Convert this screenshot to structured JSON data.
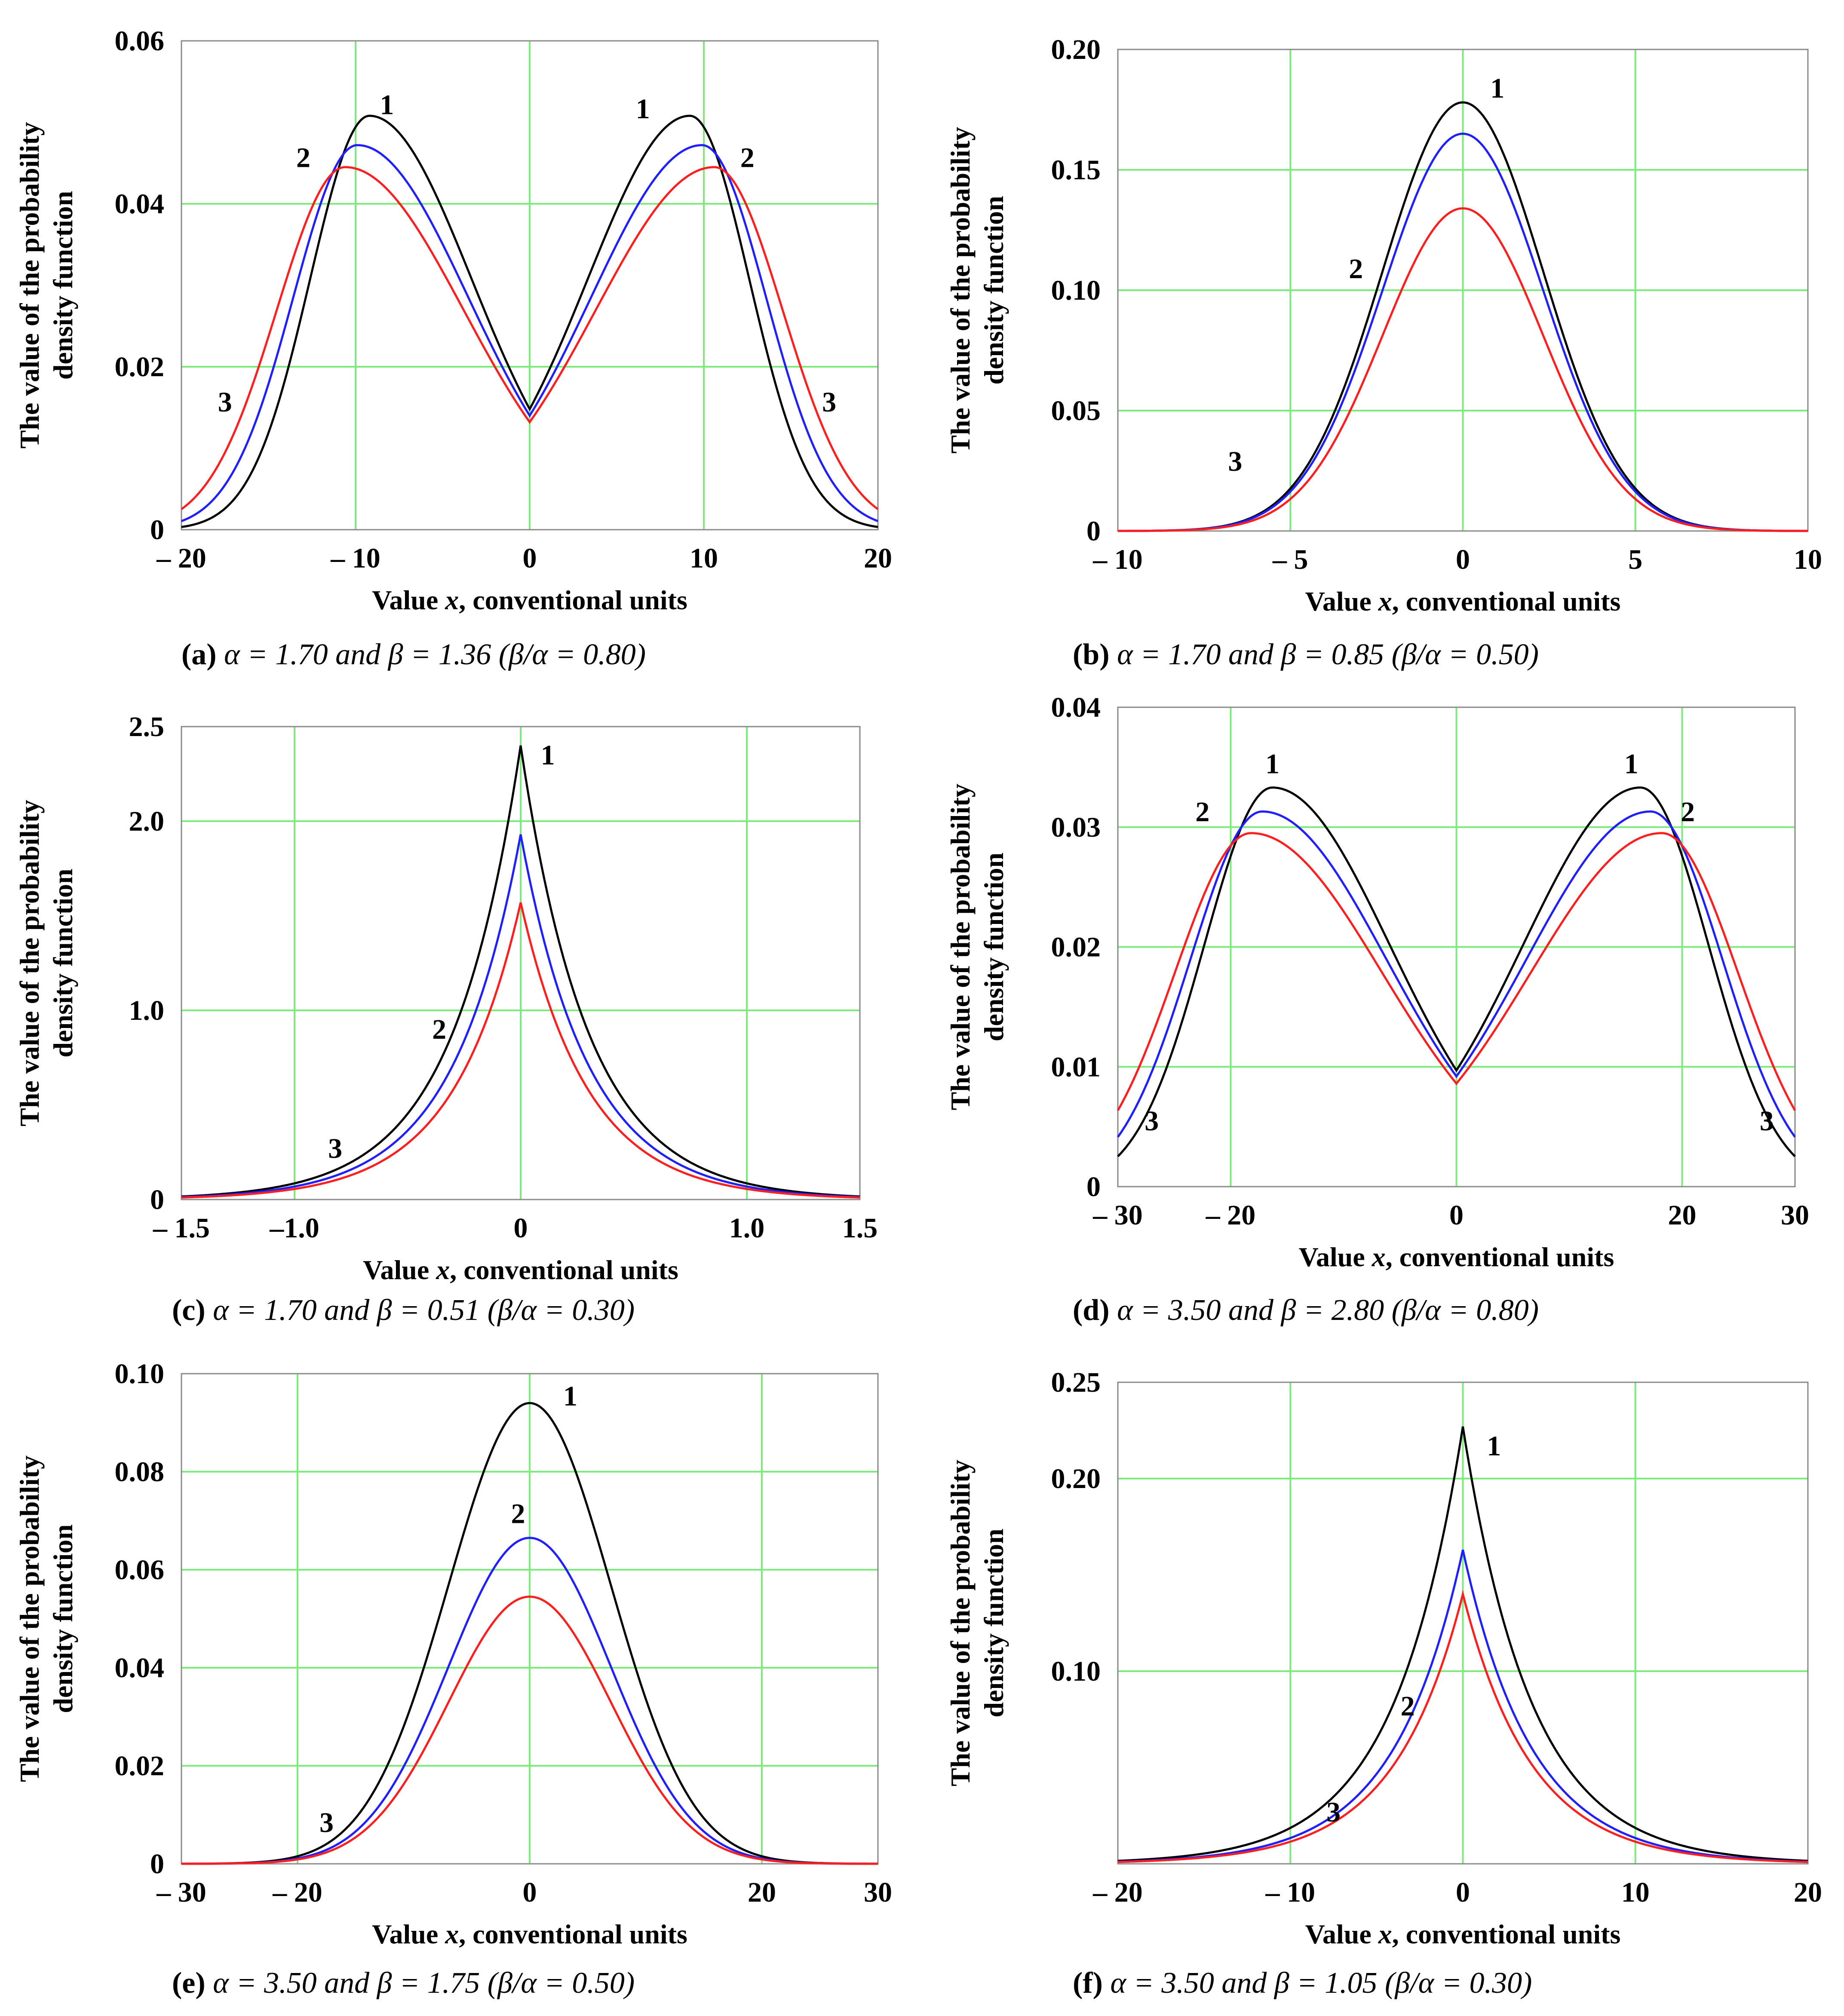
{
  "colors": {
    "grid": "#7CEB7C",
    "curve_1": "#000000",
    "curve_2": "#1f1fff",
    "curve_3": "#ff1f1f"
  },
  "chart_data": [
    {
      "id": "a",
      "type": "line",
      "caption_letter": "(a)",
      "caption_text": "α = 1.70 and β = 1.36 (β/α = 0.80)",
      "xlabel": "Value x, conventional units",
      "ylabel_line1": "The value of the probability",
      "ylabel_line2": "density function",
      "xlim": [
        -20,
        20
      ],
      "ylim": [
        0,
        0.06
      ],
      "xticks": [
        -20,
        -10,
        0,
        10,
        20
      ],
      "xtick_labels": [
        "– 20",
        "– 10",
        "0",
        "10",
        "20"
      ],
      "yticks": [
        0,
        0.02,
        0.04,
        0.06
      ],
      "ytick_labels": [
        "0",
        "0.02",
        "0.04",
        "0.06"
      ],
      "series": [
        {
          "name": "1",
          "color": "#000000",
          "shape": "bimodal",
          "peak_x": 9.2,
          "peak_y": 0.0508,
          "center_y": 0.0148
        },
        {
          "name": "2",
          "color": "#1f1fff",
          "shape": "bimodal",
          "peak_x": 9.9,
          "peak_y": 0.0472,
          "center_y": 0.014
        },
        {
          "name": "3",
          "color": "#ff1f1f",
          "shape": "bimodal",
          "peak_x": 10.6,
          "peak_y": 0.0445,
          "center_y": 0.0132
        }
      ],
      "annotations": [
        {
          "text": "1",
          "x": -8.2,
          "y": 0.051
        },
        {
          "text": "1",
          "x": 6.5,
          "y": 0.0505
        },
        {
          "text": "2",
          "x": -13,
          "y": 0.0445
        },
        {
          "text": "2",
          "x": 12.5,
          "y": 0.0445
        },
        {
          "text": "3",
          "x": -17.5,
          "y": 0.0145
        },
        {
          "text": "3",
          "x": 17.2,
          "y": 0.0145
        }
      ]
    },
    {
      "id": "b",
      "type": "line",
      "caption_letter": "(b)",
      "caption_text": "α = 1.70 and β = 0.85 (β/α = 0.50)",
      "xlabel": "Value x, conventional units",
      "ylabel_line1": "The value of the probability",
      "ylabel_line2": "density function",
      "xlim": [
        -10,
        10
      ],
      "ylim": [
        0,
        0.2
      ],
      "xticks": [
        -10,
        -5,
        0,
        5,
        10
      ],
      "xtick_labels": [
        "– 10",
        "– 5",
        "0",
        "5",
        "10"
      ],
      "yticks": [
        0,
        0.05,
        0.1,
        0.15,
        0.2
      ],
      "ytick_labels": [
        "0",
        "0.05",
        "0.10",
        "0.15",
        "0.20"
      ],
      "series": [
        {
          "name": "1",
          "color": "#000000",
          "shape": "gaussian",
          "peak_y": 0.178
        },
        {
          "name": "2",
          "color": "#1f1fff",
          "shape": "gaussian",
          "peak_y": 0.165
        },
        {
          "name": "3",
          "color": "#ff1f1f",
          "shape": "gaussian",
          "peak_y": 0.134
        }
      ],
      "annotations": [
        {
          "text": "1",
          "x": 1.0,
          "y": 0.18
        },
        {
          "text": "2",
          "x": -3.1,
          "y": 0.105
        },
        {
          "text": "3",
          "x": -6.6,
          "y": 0.025
        }
      ]
    },
    {
      "id": "c",
      "type": "line",
      "caption_letter": "(c)",
      "caption_text": "α = 1.70 and β = 0.51 (β/α = 0.30)",
      "xlabel": "Value x, conventional units",
      "ylabel_line1": "The value of the probability",
      "ylabel_line2": "density function",
      "xlim": [
        -1.5,
        1.5
      ],
      "ylim": [
        0,
        2.5
      ],
      "xticks": [
        -1.5,
        -1.0,
        0,
        1.0,
        1.5
      ],
      "xtick_labels": [
        "– 1.5",
        "–1.0",
        "0",
        "1.0",
        "1.5"
      ],
      "yticks": [
        0,
        1.0,
        2.0,
        2.5
      ],
      "ytick_labels": [
        "0",
        "1.0",
        "2.0",
        "2.5"
      ],
      "series": [
        {
          "name": "1",
          "color": "#000000",
          "shape": "cusp",
          "peak_y": 2.4
        },
        {
          "name": "2",
          "color": "#1f1fff",
          "shape": "cusp",
          "peak_y": 1.93
        },
        {
          "name": "3",
          "color": "#ff1f1f",
          "shape": "cusp",
          "peak_y": 1.57
        }
      ],
      "annotations": [
        {
          "text": "1",
          "x": 0.12,
          "y": 2.3
        },
        {
          "text": "2",
          "x": -0.36,
          "y": 0.85
        },
        {
          "text": "3",
          "x": -0.82,
          "y": 0.22
        }
      ]
    },
    {
      "id": "d",
      "type": "line",
      "caption_letter": "(d)",
      "caption_text": "α = 3.50 and β = 2.80 (β/α = 0.80)",
      "xlabel": "Value x, conventional units",
      "ylabel_line1": "The value of the probability",
      "ylabel_line2": "density function",
      "xlim": [
        -30,
        30
      ],
      "ylim": [
        0,
        0.04
      ],
      "xticks": [
        -30,
        -20,
        0,
        20,
        30
      ],
      "xtick_labels": [
        "– 30",
        "– 20",
        "0",
        "20",
        "30"
      ],
      "yticks": [
        0,
        0.01,
        0.02,
        0.03,
        0.04
      ],
      "ytick_labels": [
        "0",
        "0.01",
        "0.02",
        "0.03",
        "0.04"
      ],
      "series": [
        {
          "name": "1",
          "color": "#000000",
          "shape": "bimodal",
          "peak_x": 16.3,
          "peak_y": 0.0333,
          "center_y": 0.0097
        },
        {
          "name": "2",
          "color": "#1f1fff",
          "shape": "bimodal",
          "peak_x": 17.2,
          "peak_y": 0.0313,
          "center_y": 0.0092
        },
        {
          "name": "3",
          "color": "#ff1f1f",
          "shape": "bimodal",
          "peak_x": 18.2,
          "peak_y": 0.0295,
          "center_y": 0.0086
        }
      ],
      "annotations": [
        {
          "text": "1",
          "x": -16.3,
          "y": 0.0345
        },
        {
          "text": "1",
          "x": 15.5,
          "y": 0.0345
        },
        {
          "text": "2",
          "x": -22.5,
          "y": 0.0305
        },
        {
          "text": "2",
          "x": 20.5,
          "y": 0.0305
        },
        {
          "text": "3",
          "x": -27,
          "y": 0.0047
        },
        {
          "text": "3",
          "x": 27.5,
          "y": 0.0047
        }
      ]
    },
    {
      "id": "e",
      "type": "line",
      "caption_letter": "(e)",
      "caption_text": "α = 3.50 and β = 1.75 (β/α = 0.50)",
      "xlabel": "Value x, conventional units",
      "ylabel_line1": "The value of the probability",
      "ylabel_line2": "density function",
      "xlim": [
        -30,
        30
      ],
      "ylim": [
        0,
        0.1
      ],
      "xticks": [
        -30,
        -20,
        0,
        20,
        30
      ],
      "xtick_labels": [
        "– 30",
        "– 20",
        "0",
        "20",
        "30"
      ],
      "yticks": [
        0,
        0.02,
        0.04,
        0.06,
        0.08,
        0.1
      ],
      "ytick_labels": [
        "0",
        "0.02",
        "0.04",
        "0.06",
        "0.08",
        "0.10"
      ],
      "series": [
        {
          "name": "1",
          "color": "#000000",
          "shape": "gaussian",
          "peak_y": 0.094
        },
        {
          "name": "2",
          "color": "#1f1fff",
          "shape": "gaussian",
          "peak_y": 0.0665
        },
        {
          "name": "3",
          "color": "#ff1f1f",
          "shape": "gaussian",
          "peak_y": 0.0545
        }
      ],
      "annotations": [
        {
          "text": "1",
          "x": 3.5,
          "y": 0.0935
        },
        {
          "text": "2",
          "x": -1.0,
          "y": 0.0695
        },
        {
          "text": "3",
          "x": -17.5,
          "y": 0.0065
        }
      ]
    },
    {
      "id": "f",
      "type": "line",
      "caption_letter": "(f)",
      "caption_text": "α = 3.50 and β = 1.05 (β/α = 0.30)",
      "xlabel": "Value x, conventional units",
      "ylabel_line1": "The value of the probability",
      "ylabel_line2": "density function",
      "xlim": [
        -20,
        20
      ],
      "ylim": [
        0,
        0.25
      ],
      "xticks": [
        -20,
        -10,
        0,
        10,
        20
      ],
      "xtick_labels": [
        "– 20",
        "– 10",
        "0",
        "10",
        "20"
      ],
      "yticks": [
        0.1,
        0.2,
        0.25
      ],
      "ytick_labels": [
        "0.10",
        "0.20",
        "0.25"
      ],
      "series": [
        {
          "name": "1",
          "color": "#000000",
          "shape": "cusp",
          "peak_y": 0.227
        },
        {
          "name": "2",
          "color": "#1f1fff",
          "shape": "cusp",
          "peak_y": 0.163
        },
        {
          "name": "3",
          "color": "#ff1f1f",
          "shape": "cusp",
          "peak_y": 0.14
        }
      ],
      "annotations": [
        {
          "text": "1",
          "x": 1.8,
          "y": 0.212
        },
        {
          "text": "2",
          "x": -3.2,
          "y": 0.077
        },
        {
          "text": "3",
          "x": -7.5,
          "y": 0.022
        }
      ]
    }
  ]
}
